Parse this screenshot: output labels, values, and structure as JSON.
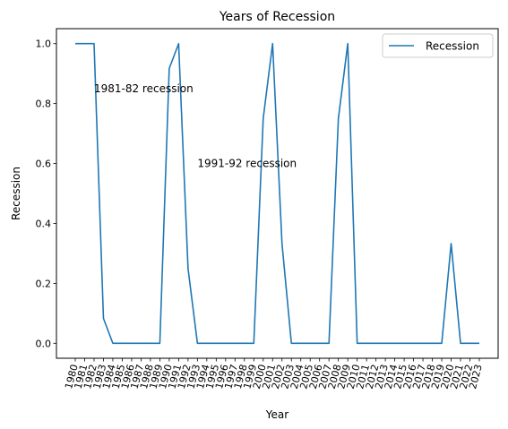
{
  "chart_data": {
    "type": "line",
    "title": "Years of Recession",
    "xlabel": "Year",
    "ylabel": "Recession",
    "ylim": [
      -0.05,
      1.05
    ],
    "yticks": [
      0.0,
      0.2,
      0.4,
      0.6,
      0.8,
      1.0
    ],
    "ytick_labels": [
      "0.0",
      "0.2",
      "0.4",
      "0.6",
      "0.8",
      "1.0"
    ],
    "legend_position": "top-right",
    "grid": false,
    "x": [
      "1980",
      "1981",
      "1982",
      "1983",
      "1984",
      "1985",
      "1986",
      "1987",
      "1988",
      "1989",
      "1990",
      "1991",
      "1992",
      "1993",
      "1994",
      "1995",
      "1996",
      "1997",
      "1998",
      "1999",
      "2000",
      "2001",
      "2002",
      "2003",
      "2004",
      "2005",
      "2006",
      "2007",
      "2008",
      "2009",
      "2010",
      "2011",
      "2012",
      "2013",
      "2014",
      "2015",
      "2016",
      "2017",
      "2018",
      "2019",
      "2020",
      "2021",
      "2022",
      "2023"
    ],
    "series": [
      {
        "name": "Recession",
        "color": "#1f77b4",
        "values": [
          1.0,
          1.0,
          1.0,
          0.083,
          0.0,
          0.0,
          0.0,
          0.0,
          0.0,
          0.0,
          0.917,
          1.0,
          0.25,
          0.0,
          0.0,
          0.0,
          0.0,
          0.0,
          0.0,
          0.0,
          0.75,
          1.0,
          0.333,
          0.0,
          0.0,
          0.0,
          0.0,
          0.0,
          0.75,
          1.0,
          0.0,
          0.0,
          0.0,
          0.0,
          0.0,
          0.0,
          0.0,
          0.0,
          0.0,
          0.0,
          0.333,
          0.0,
          0.0,
          0.0
        ]
      }
    ],
    "annotations": [
      {
        "text": "1981-82 recession",
        "x": "1982",
        "y": 0.85
      },
      {
        "text": "1991-92 recession",
        "x": "1993",
        "y": 0.6
      }
    ]
  }
}
